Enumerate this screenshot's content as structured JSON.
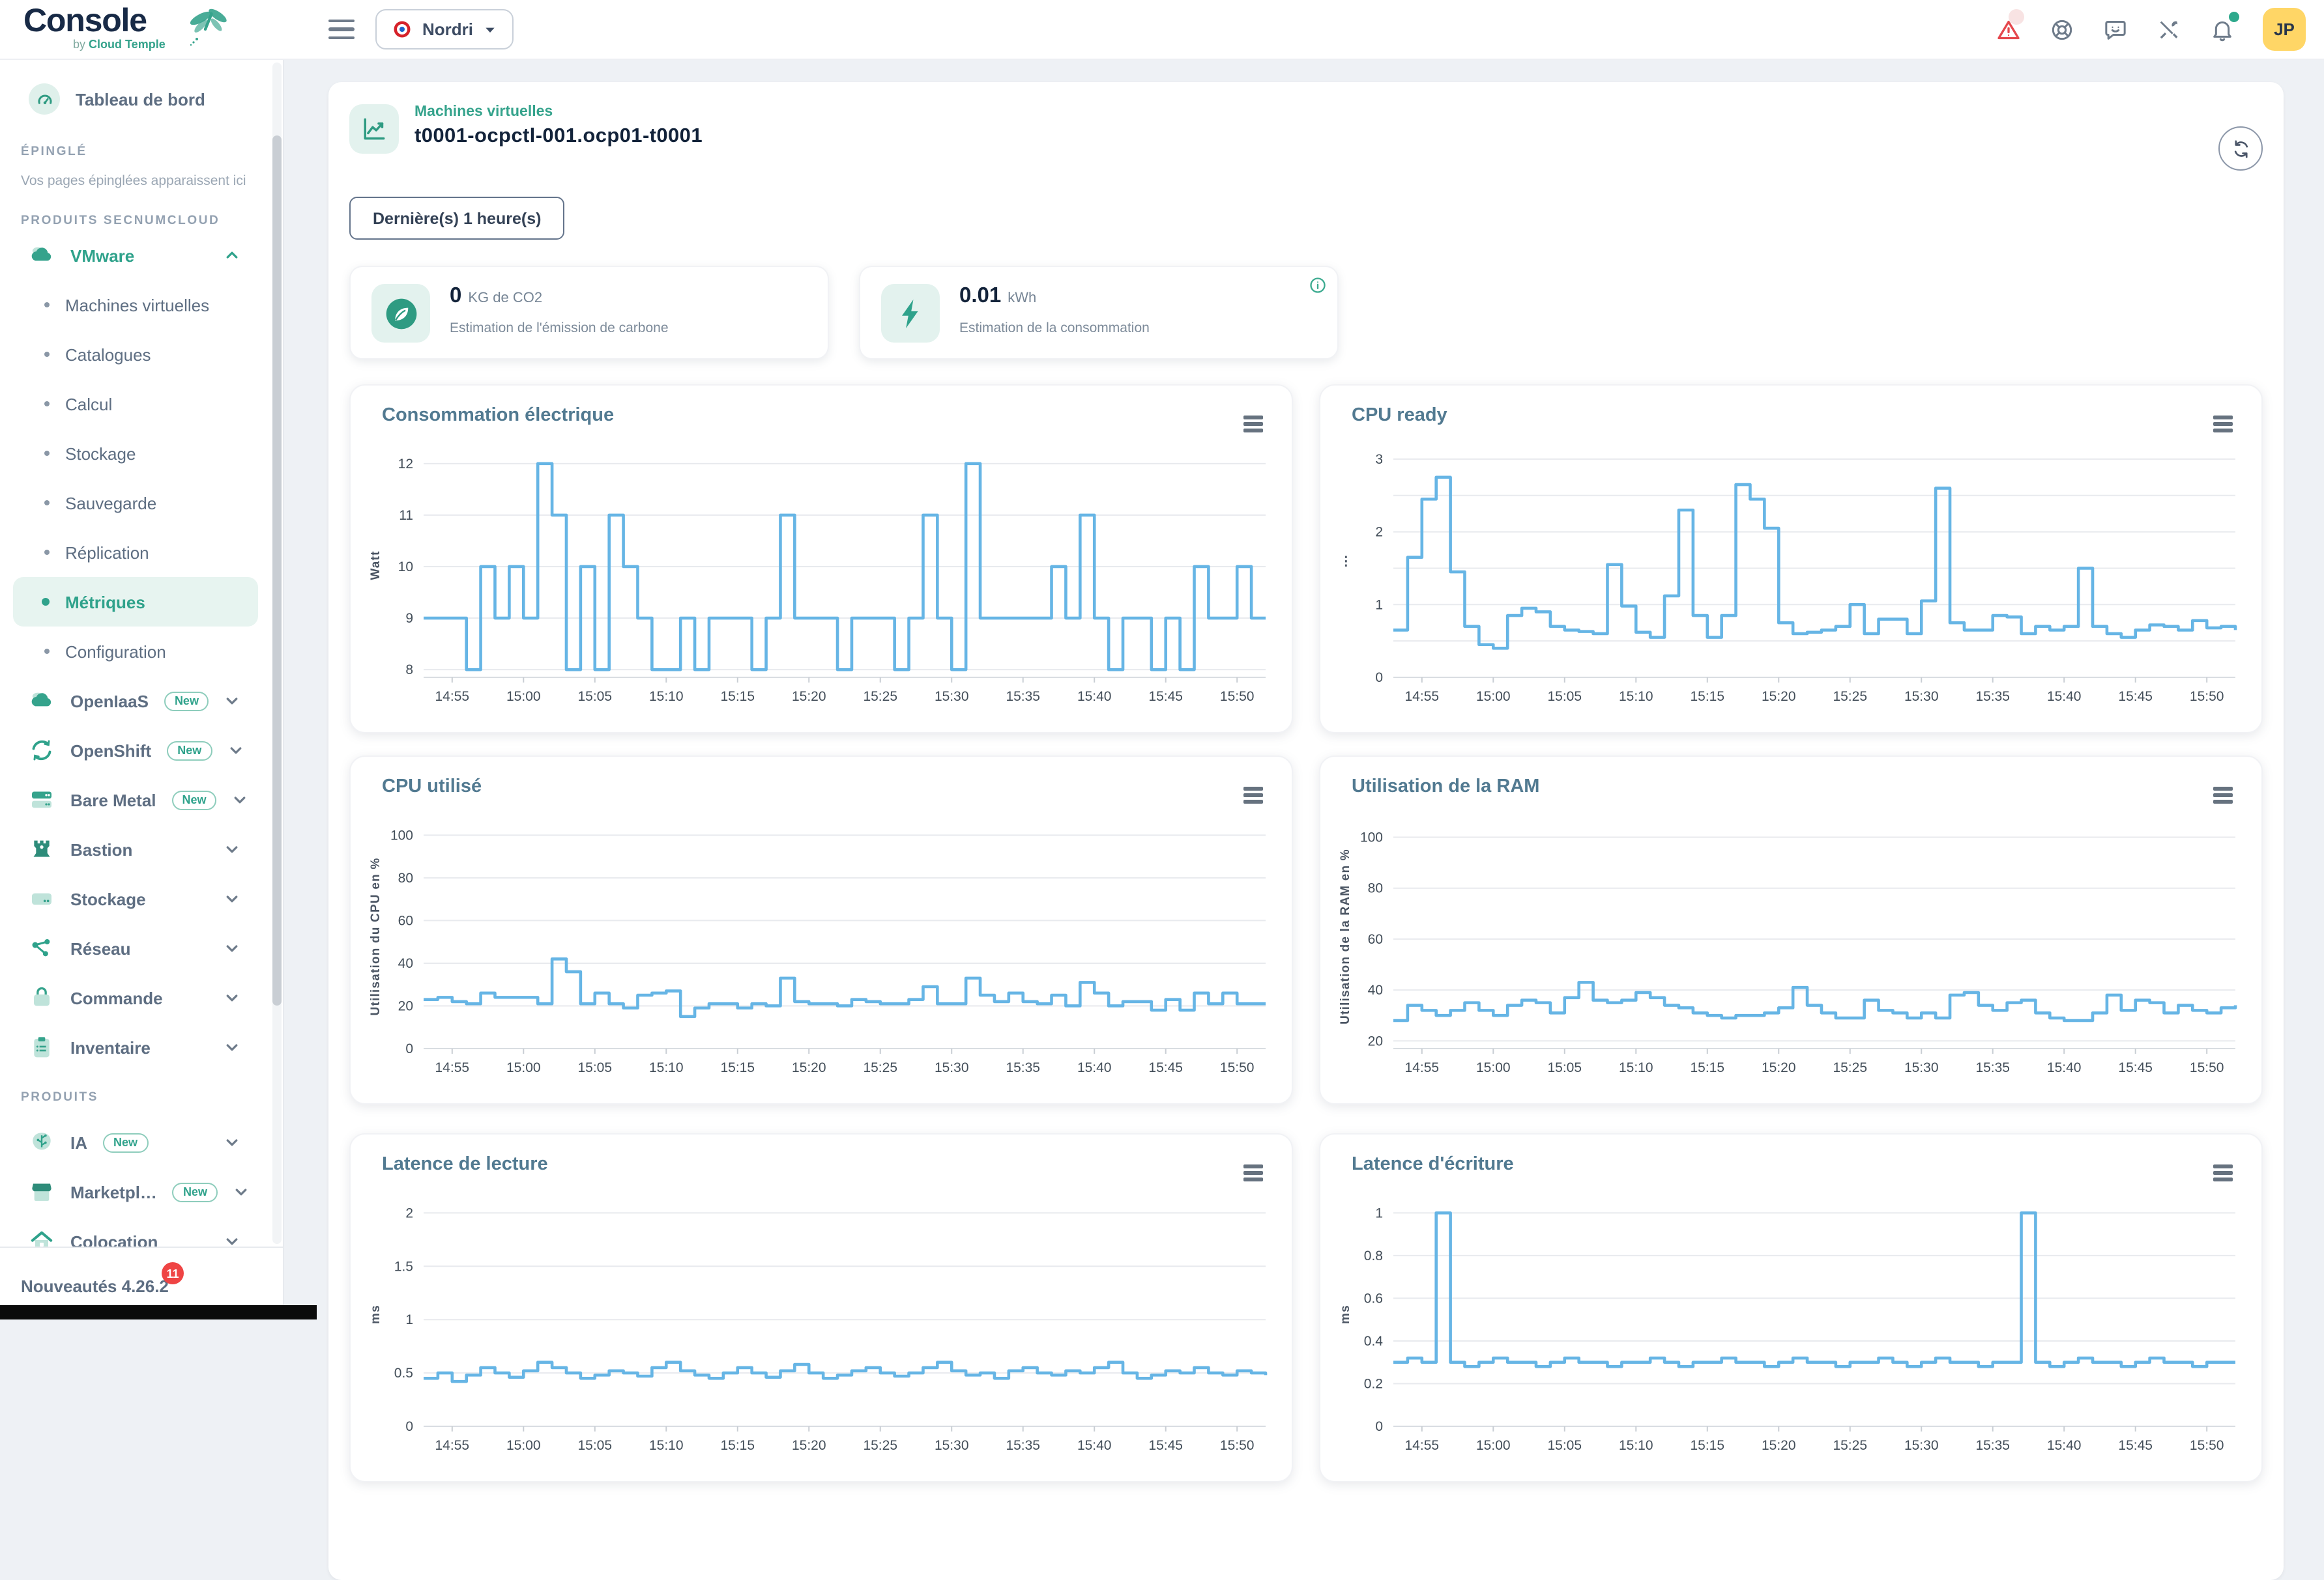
{
  "topbar": {
    "logo": "Console",
    "logo_sub_by": "by ",
    "logo_sub": "Cloud Temple",
    "tenant": "Nordri",
    "icons": [
      "warning-icon",
      "help-icon",
      "feedback-icon",
      "tools-icon",
      "notifications-icon"
    ],
    "avatar": "JP"
  },
  "sidebar": {
    "dashboard": {
      "label": "Tableau de bord",
      "icon": "gauge-icon"
    },
    "pinned_section": "ÉPINGLÉ",
    "pinned_hint": "Vos pages épinglées apparaissent ici",
    "secnum_section": "PRODUITS SECNUMCLOUD",
    "new_badge": "New",
    "groups_secnum": [
      {
        "label": "VMware",
        "icon": "cloud-icon",
        "expanded": true,
        "children": [
          {
            "label": "Machines virtuelles"
          },
          {
            "label": "Catalogues"
          },
          {
            "label": "Calcul"
          },
          {
            "label": "Stockage"
          },
          {
            "label": "Sauvegarde"
          },
          {
            "label": "Réplication"
          },
          {
            "label": "Métriques",
            "active": true
          },
          {
            "label": "Configuration"
          }
        ]
      },
      {
        "label": "OpenIaaS",
        "icon": "cloud-icon",
        "new": true
      },
      {
        "label": "OpenShift",
        "icon": "openshift-icon",
        "new": true
      },
      {
        "label": "Bare Metal",
        "icon": "bare-metal-icon",
        "new": true
      },
      {
        "label": "Bastion",
        "icon": "bastion-icon"
      },
      {
        "label": "Stockage",
        "icon": "storage-icon"
      },
      {
        "label": "Réseau",
        "icon": "network-icon"
      },
      {
        "label": "Commande",
        "icon": "order-icon"
      },
      {
        "label": "Inventaire",
        "icon": "inventory-icon"
      }
    ],
    "products_section": "PRODUITS",
    "groups_products": [
      {
        "label": "IA",
        "icon": "ai-icon",
        "new": true
      },
      {
        "label": "Marketpl…",
        "icon": "marketplace-icon",
        "new": true
      },
      {
        "label": "Colocation",
        "icon": "colocation-icon"
      }
    ],
    "footer": {
      "label": "Nouveautés 4.26.2",
      "badge": "11"
    }
  },
  "main": {
    "breadcrumb": "Machines virtuelles",
    "vm_name": "t0001-ocpctl-001.ocp01-t0001",
    "time_range": "Dernière(s) 1 heure(s)",
    "stat_cards": [
      {
        "value": "0",
        "unit": "KG de CO2",
        "caption": "Estimation de l'émission de carbone",
        "icon": "leaf-icon"
      },
      {
        "value": "0.01",
        "unit": "kWh",
        "caption": "Estimation de la consommation",
        "icon": "bolt-icon",
        "info_icon": true
      }
    ]
  },
  "colors": {
    "brand_teal": "#2FA28B",
    "teal_light_bg": "#E3F2EE",
    "chart_line": "#66B5E5",
    "alert_red": "#E5484D",
    "badge_red": "#EF4444",
    "avatar_yellow": "#FFD666"
  },
  "chart_data": [
    {
      "type": "line",
      "step": true,
      "title": "Consommation électrique",
      "ylabel": "Watt",
      "line_color": "#66B5E5",
      "grid": true,
      "legend": "none",
      "y_min": 7.85,
      "y_max": 12.2,
      "y_ticks": [
        8,
        9,
        10,
        11,
        12
      ],
      "y_minor": [],
      "x_start": "14:53",
      "x_step_minutes": 1,
      "x_tick_labels": [
        "14:55",
        "15:00",
        "15:05",
        "15:10",
        "15:15",
        "15:20",
        "15:25",
        "15:30",
        "15:35",
        "15:40",
        "15:45",
        "15:50"
      ],
      "x_tick_idx": [
        2,
        7,
        12,
        17,
        22,
        27,
        32,
        37,
        42,
        47,
        52,
        57
      ],
      "values": [
        9,
        9,
        9,
        8,
        10,
        9,
        10,
        9,
        12,
        11,
        8,
        10,
        8,
        11,
        10,
        9,
        8,
        8,
        9,
        8,
        9,
        9,
        9,
        8,
        9,
        11,
        9,
        9,
        9,
        8,
        9,
        9,
        9,
        8,
        9,
        11,
        9,
        8,
        12,
        9,
        9,
        9,
        9,
        9,
        10,
        9,
        11,
        9,
        8,
        9,
        9,
        8,
        9,
        8,
        10,
        9,
        9,
        10,
        9,
        9
      ]
    },
    {
      "type": "line",
      "step": true,
      "title": "CPU ready",
      "ylabel": "⋮",
      "line_color": "#66B5E5",
      "grid": true,
      "legend": "none",
      "y_min": 0,
      "y_max": 3.08,
      "y_ticks": [
        0,
        1,
        2,
        3
      ],
      "y_minor": [
        0.5,
        1.5,
        2.5
      ],
      "x_start": "14:53",
      "x_step_minutes": 1,
      "x_tick_labels": [
        "14:55",
        "15:00",
        "15:05",
        "15:10",
        "15:15",
        "15:20",
        "15:25",
        "15:30",
        "15:35",
        "15:40",
        "15:45",
        "15:50"
      ],
      "x_tick_idx": [
        2,
        7,
        12,
        17,
        22,
        27,
        32,
        37,
        42,
        47,
        52,
        57
      ],
      "values": [
        0.65,
        1.65,
        2.45,
        2.75,
        1.45,
        0.7,
        0.45,
        0.4,
        0.85,
        0.95,
        0.9,
        0.7,
        0.65,
        0.63,
        0.6,
        1.55,
        0.98,
        0.62,
        0.55,
        1.12,
        2.3,
        0.85,
        0.55,
        0.85,
        2.65,
        2.45,
        2.05,
        0.75,
        0.6,
        0.62,
        0.65,
        0.7,
        1.0,
        0.6,
        0.8,
        0.8,
        0.6,
        1.05,
        2.6,
        0.75,
        0.65,
        0.65,
        0.85,
        0.83,
        0.6,
        0.7,
        0.65,
        0.7,
        1.5,
        0.7,
        0.6,
        0.55,
        0.65,
        0.72,
        0.7,
        0.65,
        0.78,
        0.68,
        0.7,
        0.65
      ]
    },
    {
      "type": "line",
      "step": true,
      "title": "CPU utilisé",
      "ylabel": "Utilisation du CPU en %",
      "line_color": "#66B5E5",
      "grid": true,
      "legend": "none",
      "y_min": 0,
      "y_max": 105,
      "y_ticks": [
        0,
        20,
        40,
        60,
        80,
        100
      ],
      "y_minor": [],
      "x_start": "14:53",
      "x_step_minutes": 1,
      "x_tick_labels": [
        "14:55",
        "15:00",
        "15:05",
        "15:10",
        "15:15",
        "15:20",
        "15:25",
        "15:30",
        "15:35",
        "15:40",
        "15:45",
        "15:50"
      ],
      "x_tick_idx": [
        2,
        7,
        12,
        17,
        22,
        27,
        32,
        37,
        42,
        47,
        52,
        57
      ],
      "values": [
        23,
        24,
        22,
        21,
        26,
        24,
        24,
        24,
        21,
        42,
        36,
        21,
        26,
        21,
        19,
        25,
        26,
        27,
        15,
        19,
        21,
        21,
        19,
        21,
        20,
        33,
        22,
        21,
        21,
        20,
        23,
        22,
        21,
        21,
        23,
        29,
        21,
        21,
        33,
        25,
        22,
        26,
        22,
        21,
        25,
        20,
        31,
        26,
        20,
        22,
        22,
        18,
        23,
        18,
        26,
        21,
        26,
        21,
        21,
        21
      ]
    },
    {
      "type": "line",
      "step": true,
      "title": "Utilisation de la RAM",
      "ylabel": "Utilisation de la RAM en %",
      "line_color": "#66B5E5",
      "grid": true,
      "legend": "none",
      "y_min": 17,
      "y_max": 105,
      "y_ticks": [
        20,
        40,
        60,
        80,
        100
      ],
      "y_minor": [],
      "x_start": "14:53",
      "x_step_minutes": 1,
      "x_tick_labels": [
        "14:55",
        "15:00",
        "15:05",
        "15:10",
        "15:15",
        "15:20",
        "15:25",
        "15:30",
        "15:35",
        "15:40",
        "15:45",
        "15:50"
      ],
      "x_tick_idx": [
        2,
        7,
        12,
        17,
        22,
        27,
        32,
        37,
        42,
        47,
        52,
        57
      ],
      "values": [
        28,
        34,
        32,
        30,
        32,
        35,
        32,
        30,
        34,
        36,
        35,
        31,
        37,
        43,
        36,
        35,
        36,
        39,
        37,
        34,
        33,
        31,
        30,
        29,
        30,
        30,
        31,
        33,
        41,
        34,
        31,
        29,
        29,
        36,
        32,
        31,
        29,
        31,
        29,
        38,
        39,
        34,
        32,
        35,
        36,
        31,
        29,
        28,
        28,
        31,
        38,
        32,
        36,
        35,
        31,
        34,
        32,
        31,
        33,
        34
      ]
    },
    {
      "type": "line",
      "step": true,
      "title": "Latence de lecture",
      "ylabel": "ms",
      "line_color": "#66B5E5",
      "grid": true,
      "legend": "none",
      "y_min": 0,
      "y_max": 2.1,
      "y_ticks": [
        0,
        0.5,
        1,
        1.5,
        2
      ],
      "y_minor": [],
      "x_start": "14:53",
      "x_step_minutes": 1,
      "x_tick_labels": [
        "14:55",
        "15:00",
        "15:05",
        "15:10",
        "15:15",
        "15:20",
        "15:25",
        "15:30",
        "15:35",
        "15:40",
        "15:45",
        "15:50"
      ],
      "x_tick_idx": [
        2,
        7,
        12,
        17,
        22,
        27,
        32,
        37,
        42,
        47,
        52,
        57
      ],
      "values": [
        0.45,
        0.5,
        0.42,
        0.48,
        0.55,
        0.5,
        0.46,
        0.52,
        0.6,
        0.55,
        0.5,
        0.45,
        0.48,
        0.52,
        0.5,
        0.47,
        0.55,
        0.6,
        0.52,
        0.48,
        0.45,
        0.5,
        0.55,
        0.5,
        0.46,
        0.52,
        0.58,
        0.5,
        0.45,
        0.48,
        0.52,
        0.55,
        0.5,
        0.47,
        0.5,
        0.55,
        0.6,
        0.52,
        0.48,
        0.5,
        0.45,
        0.52,
        0.55,
        0.5,
        0.48,
        0.52,
        0.5,
        0.55,
        0.6,
        0.5,
        0.45,
        0.48,
        0.52,
        0.5,
        0.55,
        0.5,
        0.48,
        0.52,
        0.5,
        0.48
      ]
    },
    {
      "type": "line",
      "step": true,
      "title": "Latence d'écriture",
      "ylabel": "ms",
      "line_color": "#66B5E5",
      "grid": true,
      "legend": "none",
      "y_min": 0,
      "y_max": 1.05,
      "y_ticks": [
        0,
        0.2,
        0.4,
        0.6,
        0.8,
        1
      ],
      "y_minor": [],
      "x_start": "14:53",
      "x_step_minutes": 1,
      "x_tick_labels": [
        "14:55",
        "15:00",
        "15:05",
        "15:10",
        "15:15",
        "15:20",
        "15:25",
        "15:30",
        "15:35",
        "15:40",
        "15:45",
        "15:50"
      ],
      "x_tick_idx": [
        2,
        7,
        12,
        17,
        22,
        27,
        32,
        37,
        42,
        47,
        52,
        57
      ],
      "values": [
        0.3,
        0.32,
        0.3,
        1.0,
        0.3,
        0.28,
        0.3,
        0.32,
        0.3,
        0.3,
        0.28,
        0.3,
        0.32,
        0.3,
        0.3,
        0.28,
        0.3,
        0.3,
        0.32,
        0.3,
        0.28,
        0.3,
        0.3,
        0.32,
        0.3,
        0.3,
        0.28,
        0.3,
        0.32,
        0.3,
        0.3,
        0.28,
        0.3,
        0.3,
        0.32,
        0.3,
        0.28,
        0.3,
        0.32,
        0.3,
        0.3,
        0.28,
        0.3,
        0.3,
        1.0,
        0.3,
        0.28,
        0.3,
        0.32,
        0.3,
        0.3,
        0.28,
        0.3,
        0.32,
        0.3,
        0.3,
        0.28,
        0.3,
        0.3,
        0.3
      ]
    }
  ]
}
